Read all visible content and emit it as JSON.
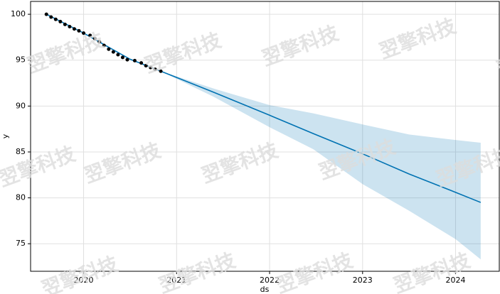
{
  "chart_data": {
    "type": "forecast",
    "xlabel": "ds",
    "ylabel": "y",
    "xlim": [
      2019.43,
      2024.47
    ],
    "ylim": [
      72.0,
      101.4
    ],
    "xticks": [
      2020,
      2021,
      2022,
      2023,
      2024
    ],
    "yticks": [
      75,
      80,
      85,
      90,
      95,
      100
    ],
    "grid": true,
    "line_color": "#0072B2",
    "band_color": "#0072B2",
    "point_color": "#000000",
    "observed": {
      "x": [
        2019.6,
        2019.65,
        2019.7,
        2019.75,
        2019.8,
        2019.85,
        2019.9,
        2019.95,
        2020.0,
        2020.07,
        2020.12,
        2020.17,
        2020.22,
        2020.27,
        2020.32,
        2020.37,
        2020.42,
        2020.47,
        2020.55,
        2020.62,
        2020.67,
        2020.72,
        2020.77,
        2020.83
      ],
      "y": [
        100.0,
        99.7,
        99.45,
        99.2,
        98.9,
        98.65,
        98.4,
        98.2,
        97.95,
        97.7,
        97.35,
        97.0,
        96.6,
        96.2,
        95.9,
        95.6,
        95.3,
        95.05,
        94.95,
        94.7,
        94.4,
        94.2,
        94.0,
        93.8
      ]
    },
    "forecast": {
      "x": [
        2019.6,
        2020.0,
        2020.5,
        2020.83,
        2021.4,
        2022.0,
        2022.47,
        2023.0,
        2023.5,
        2024.0,
        2024.27
      ],
      "yhat": [
        100.0,
        97.95,
        95.1,
        93.8,
        91.5,
        89.0,
        87.0,
        84.8,
        82.6,
        80.6,
        79.5
      ],
      "upper": [
        100.0,
        97.95,
        95.1,
        93.8,
        91.9,
        90.1,
        89.2,
        88.0,
        86.9,
        86.3,
        86.0
      ],
      "lower": [
        100.0,
        97.95,
        95.1,
        93.8,
        91.0,
        87.7,
        85.3,
        81.5,
        78.6,
        75.5,
        73.3
      ]
    }
  },
  "watermark": "翌擎科技"
}
